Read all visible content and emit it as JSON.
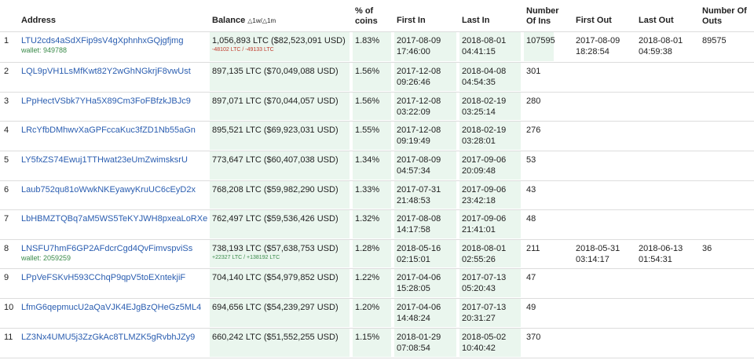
{
  "header": {
    "address": "Address",
    "balance": "Balance",
    "balance_delta": "△1w/△1m",
    "percent": "% of coins",
    "first_in": "First In",
    "last_in": "Last In",
    "ins": "Number Of Ins",
    "first_out": "First Out",
    "last_out": "Last Out",
    "outs": "Number Of Outs"
  },
  "table": {
    "rows": [
      {
        "rank": 1,
        "address": "LTU2cds4aSdXFip9sV4gXphnhxGQjgfjmg",
        "wallet": "wallet: 949788",
        "balance": "1,056,893 LTC ($82,523,091 USD)",
        "delta": "-48102 LTC / -49133 LTC",
        "percent": "1.83%",
        "first_in": "2017-08-09 17:46:00",
        "last_in": "2018-08-01 04:41:15",
        "ins": 107595,
        "first_out": "2017-08-09 18:28:54",
        "last_out": "2018-08-01 04:59:38",
        "outs": 89575
      },
      {
        "rank": 2,
        "address": "LQL9pVH1LsMfKwt82Y2wGhNGkrjF8vwUst",
        "balance": "897,135 LTC ($70,049,088 USD)",
        "percent": "1.56%",
        "first_in": "2017-12-08 09:26:46",
        "last_in": "2018-04-08 04:54:35",
        "ins": 301
      },
      {
        "rank": 3,
        "address": "LPpHectVSbk7YHa5X89Cm3FoFBfzkJBJc9",
        "balance": "897,071 LTC ($70,044,057 USD)",
        "percent": "1.56%",
        "first_in": "2017-12-08 03:22:09",
        "last_in": "2018-02-19 03:25:14",
        "ins": 280
      },
      {
        "rank": 4,
        "address": "LRcYfbDMhwvXaGPFccaKuc3fZD1Nb55aGn",
        "balance": "895,521 LTC ($69,923,031 USD)",
        "percent": "1.55%",
        "first_in": "2017-12-08 09:19:49",
        "last_in": "2018-02-19 03:28:01",
        "ins": 276
      },
      {
        "rank": 5,
        "address": "LY5fxZS74Ewuj1TTHwat23eUmZwimsksrU",
        "balance": "773,647 LTC ($60,407,038 USD)",
        "percent": "1.34%",
        "first_in": "2017-08-09 04:57:34",
        "last_in": "2017-09-06 20:09:48",
        "ins": 53
      },
      {
        "rank": 6,
        "address": "Laub752qu81oWwkNKEyawyKruUC6cEyD2x",
        "balance": "768,208 LTC ($59,982,290 USD)",
        "percent": "1.33%",
        "first_in": "2017-07-31 21:48:53",
        "last_in": "2017-09-06 23:42:18",
        "ins": 43
      },
      {
        "rank": 7,
        "address": "LbHBMZTQBq7aM5WS5TeKYJWH8pxeaLoRXe",
        "balance": "762,497 LTC ($59,536,426 USD)",
        "percent": "1.32%",
        "first_in": "2017-08-08 14:17:58",
        "last_in": "2017-09-06 21:41:01",
        "ins": 48
      },
      {
        "rank": 8,
        "address": "LNSFU7hmF6GP2AFdcrCgd4QvFimvspviSs",
        "wallet": "wallet: 2059259",
        "balance": "738,193 LTC ($57,638,753 USD)",
        "delta": "+22327 LTC / +138192 LTC",
        "percent": "1.28%",
        "first_in": "2018-05-16 02:15:01",
        "last_in": "2018-08-01 02:55:26",
        "ins": 211,
        "first_out": "2018-05-31 03:14:17",
        "last_out": "2018-06-13 01:54:31",
        "outs": 36
      },
      {
        "rank": 9,
        "address": "LPpVeFSKvH593CChqP9qpV5toEXntekjiF",
        "balance": "704,140 LTC ($54,979,852 USD)",
        "percent": "1.22%",
        "first_in": "2017-04-06 15:28:05",
        "last_in": "2017-07-13 05:20:43",
        "ins": 47
      },
      {
        "rank": 10,
        "address": "LfmG6qepmucU2aQaVJK4EJgBzQHeGz5ML4",
        "balance": "694,656 LTC ($54,239,297 USD)",
        "percent": "1.20%",
        "first_in": "2017-04-06 14:48:24",
        "last_in": "2017-07-13 20:31:27",
        "ins": 49
      },
      {
        "rank": 11,
        "address": "LZ3Nx4UMU5j3ZzGkAc8TLMZK5gRvbhJZy9",
        "balance": "660,242 LTC ($51,552,255 USD)",
        "percent": "1.15%",
        "first_in": "2018-01-29 07:08:54",
        "last_in": "2018-05-02 10:40:42",
        "ins": 370
      }
    ]
  }
}
